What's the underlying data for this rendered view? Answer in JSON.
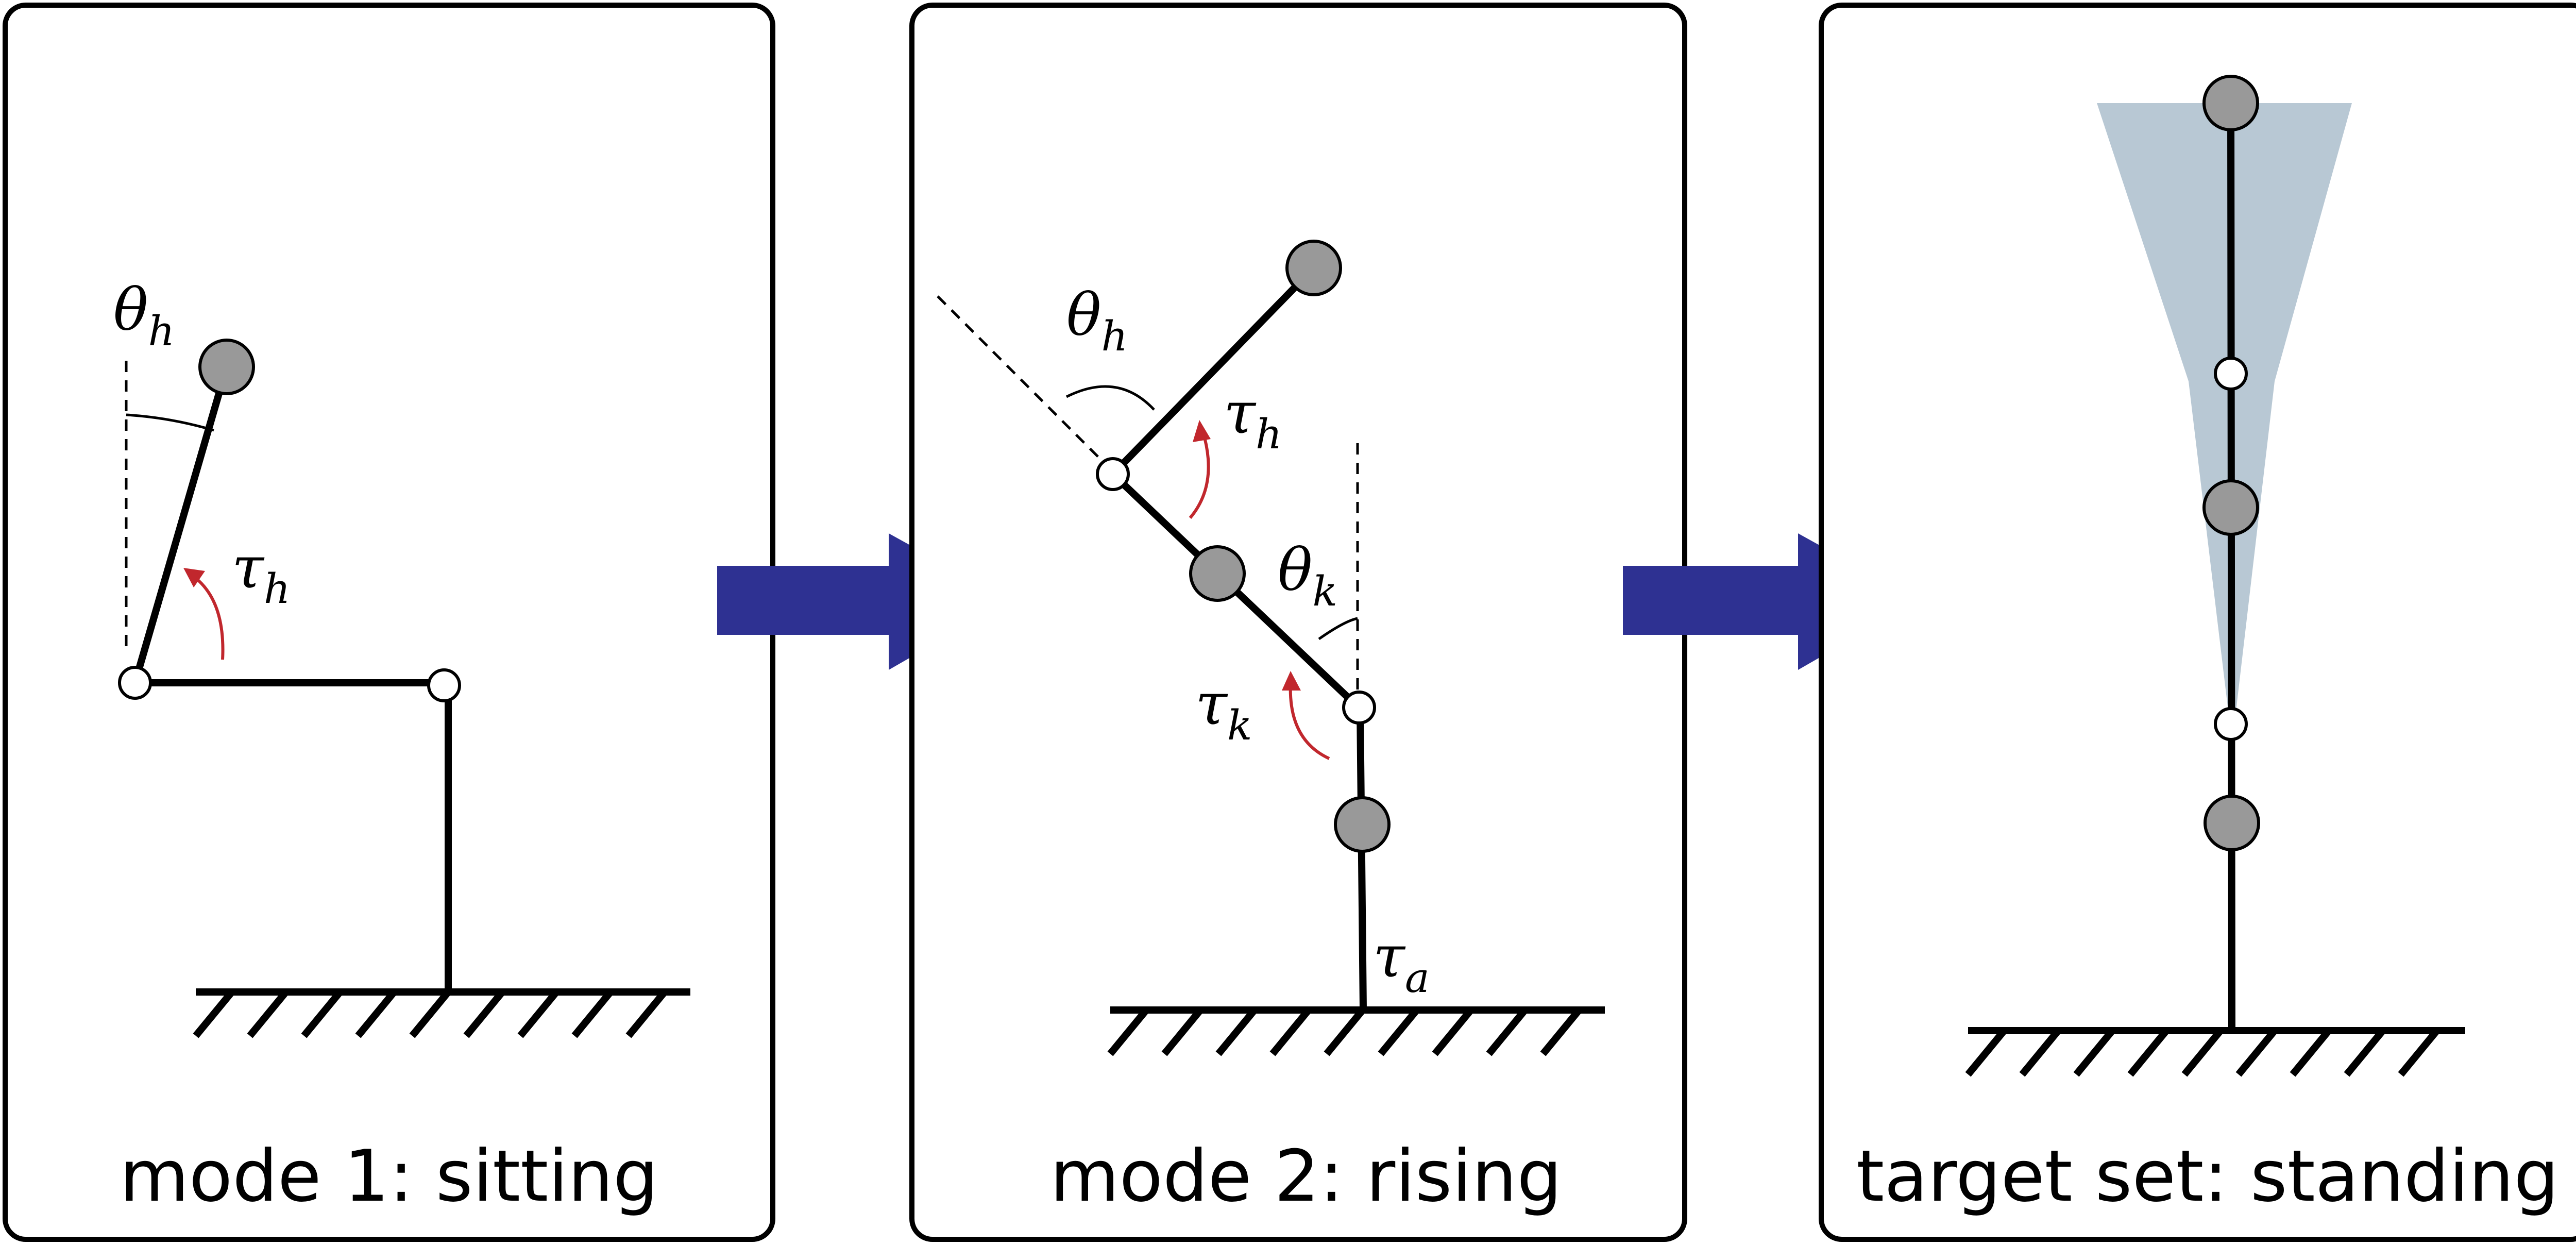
{
  "panels": [
    {
      "caption": "mode 1: sitting",
      "labels": {
        "theta_h": "θ",
        "theta_h_sub": "h",
        "tau_h": "τ",
        "tau_h_sub": "h"
      }
    },
    {
      "caption": "mode 2: rising",
      "labels": {
        "theta_h": "θ",
        "theta_h_sub": "h",
        "tau_h": "τ",
        "tau_h_sub": "h",
        "theta_k": "θ",
        "theta_k_sub": "k",
        "tau_k": "τ",
        "tau_k_sub": "k",
        "tau_a": "τ",
        "tau_a_sub": "a"
      }
    },
    {
      "caption": "target set: standing"
    }
  ],
  "colors": {
    "arrow": "#2e3192",
    "torque": "#c1272d",
    "mass": "#999999",
    "target_cone": "#b8c8d4"
  }
}
